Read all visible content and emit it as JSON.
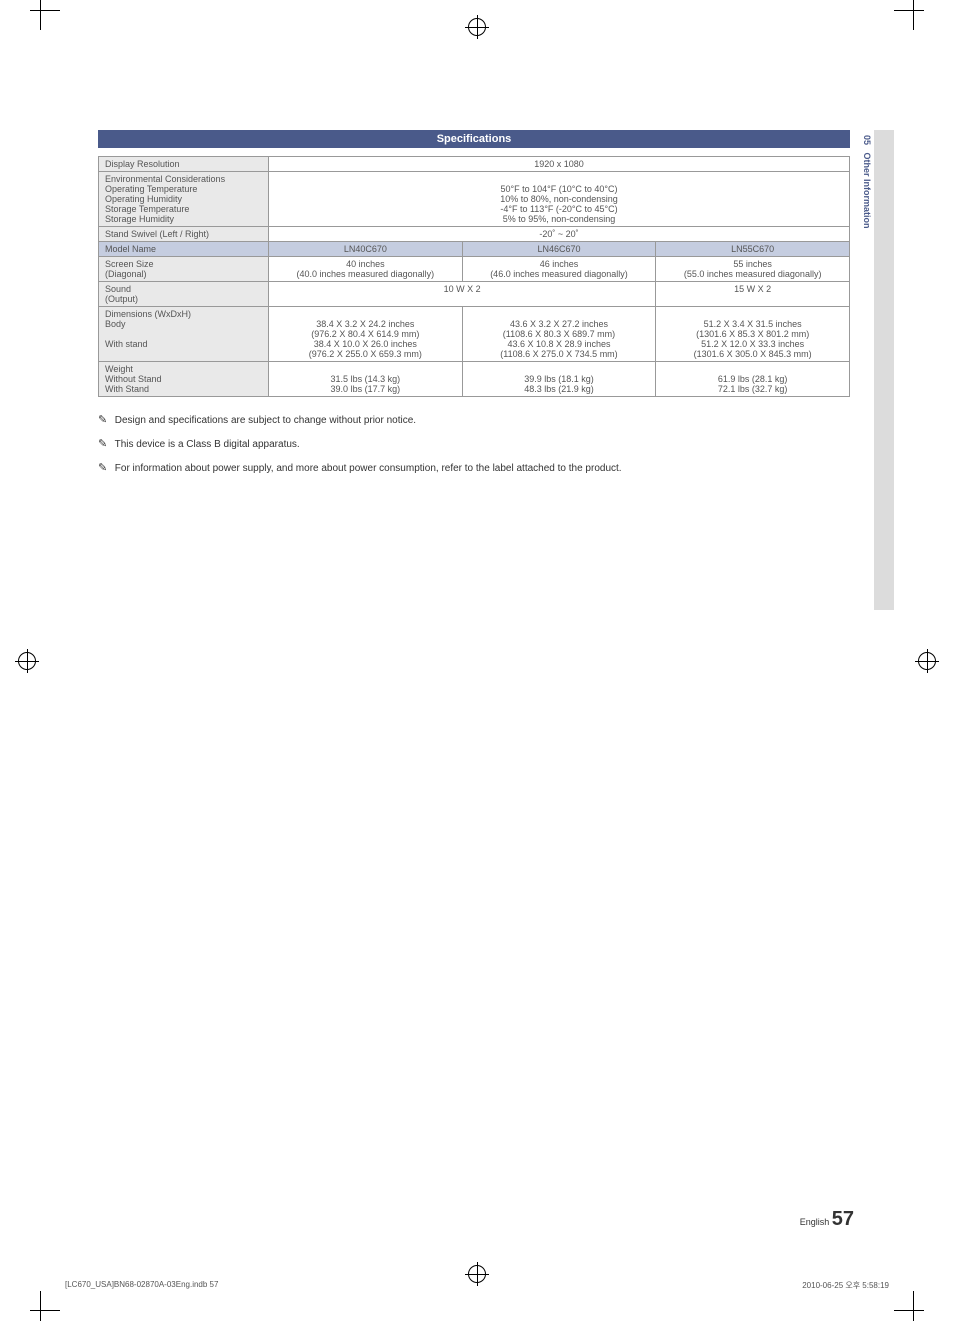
{
  "section_title": "Specifications",
  "side_tab": {
    "number": "05",
    "label": "Other Information"
  },
  "table": {
    "rows": [
      {
        "label": "Display Resolution",
        "cells": [
          "1920 x 1080"
        ],
        "colspan": 3
      },
      {
        "label": "Environmental Considerations\nOperating Temperature\nOperating Humidity\nStorage Temperature\nStorage Humidity",
        "cells": [
          "\n50°F to 104°F (10°C to 40°C)\n10% to 80%, non-condensing\n-4°F to 113°F (-20°C to 45°C)\n5% to 95%, non-condensing"
        ],
        "colspan": 3
      },
      {
        "label": "Stand Swivel (Left / Right)",
        "cells": [
          "-20˚ ~ 20˚"
        ],
        "colspan": 3
      },
      {
        "label": "Model Name",
        "cells": [
          "LN40C670",
          "LN46C670",
          "LN55C670"
        ],
        "header": true
      },
      {
        "label": "Screen Size\n(Diagonal)",
        "cells": [
          "40 inches\n(40.0 inches measured diagonally)",
          "46 inches\n(46.0 inches measured diagonally)",
          "55 inches\n(55.0 inches measured diagonally)"
        ]
      },
      {
        "label": "Sound\n(Output)",
        "cells_custom": [
          {
            "text": "10 W X 2",
            "colspan": 2
          },
          {
            "text": "15 W X 2",
            "colspan": 1
          }
        ]
      },
      {
        "label": "Dimensions (WxDxH)\nBody\n\nWith stand",
        "cells": [
          "\n38.4 X 3.2 X 24.2 inches\n(976.2 X 80.4 X 614.9 mm)\n38.4 X 10.0 X 26.0 inches\n(976.2 X 255.0 X 659.3 mm)",
          "\n43.6 X 3.2 X 27.2 inches\n(1108.6 X 80.3 X 689.7 mm)\n43.6 X 10.8 X 28.9 inches\n(1108.6 X 275.0 X 734.5 mm)",
          "\n51.2 X 3.4 X 31.5 inches\n(1301.6 X 85.3 X 801.2 mm)\n51.2 X 12.0 X 33.3 inches\n(1301.6 X 305.0 X 845.3 mm)"
        ]
      },
      {
        "label": "Weight\nWithout Stand\nWith Stand",
        "cells": [
          "\n31.5 lbs (14.3 kg)\n39.0 lbs (17.7 kg)",
          "\n39.9 lbs (18.1 kg)\n48.3 lbs (21.9 kg)",
          "\n61.9 lbs (28.1 kg)\n72.1 lbs (32.7 kg)"
        ]
      }
    ]
  },
  "notes": [
    "Design and specifications are subject to change without prior notice.",
    "This device is a Class B digital apparatus.",
    "For information about power supply, and more about power consumption, refer to the label attached to the product."
  ],
  "page": {
    "language": "English",
    "number": "57"
  },
  "footer": {
    "left": "[LC670_USA]BN68-02870A-03Eng.indb   57",
    "right": "2010-06-25   오후 5:58:19"
  }
}
